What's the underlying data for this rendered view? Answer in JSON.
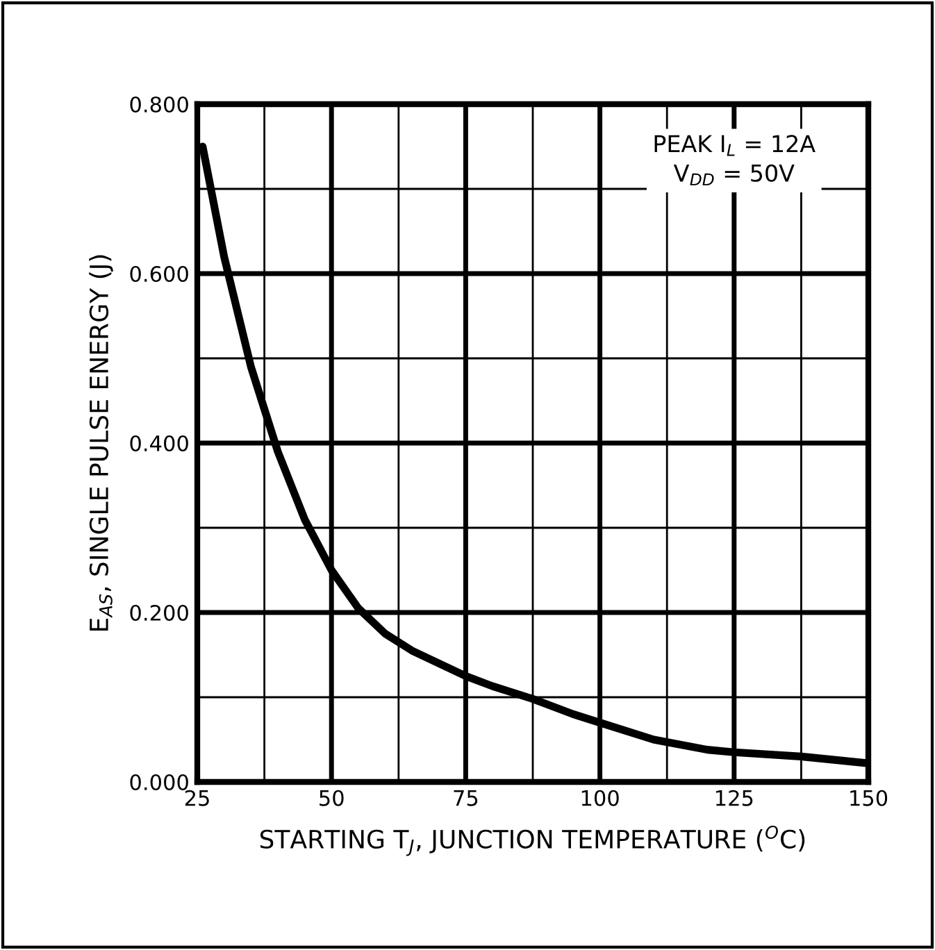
{
  "chart_data": {
    "type": "line",
    "xlabel": "STARTING T$_{J}$, JUNCTION TEMPERATURE ($^{O}$C)",
    "ylabel": "E$_{AS}$, SINGLE PULSE ENERGY (J)",
    "annotations": [
      "PEAK I$_{L}$ = 12A",
      "V$_{DD}$ = 50V"
    ],
    "x": [
      26,
      30,
      35,
      40,
      45,
      50,
      55,
      60,
      65,
      70,
      75,
      80,
      87.5,
      95,
      100,
      110,
      120,
      125,
      137.5,
      150
    ],
    "series": [
      {
        "color": "#000000",
        "values": [
          0.75,
          0.62,
          0.49,
          0.39,
          0.31,
          0.25,
          0.205,
          0.175,
          0.155,
          0.14,
          0.125,
          0.113,
          0.098,
          0.08,
          0.07,
          0.05,
          0.038,
          0.035,
          0.03,
          0.022
        ]
      }
    ],
    "xlim": [
      25,
      150
    ],
    "xticks": [
      25,
      50,
      75,
      100,
      125,
      150
    ],
    "ylim": [
      0,
      0.8
    ],
    "yticks": [
      {
        "value": 0,
        "label": "0.000"
      },
      {
        "value": 0.2,
        "label": "0.200"
      },
      {
        "value": 0.4,
        "label": "0.400"
      },
      {
        "value": 0.6,
        "label": "0.600"
      },
      {
        "value": 0.8,
        "label": "0.800"
      }
    ],
    "grid": true,
    "legend": false,
    "marker": "none",
    "line_style": "solid"
  }
}
